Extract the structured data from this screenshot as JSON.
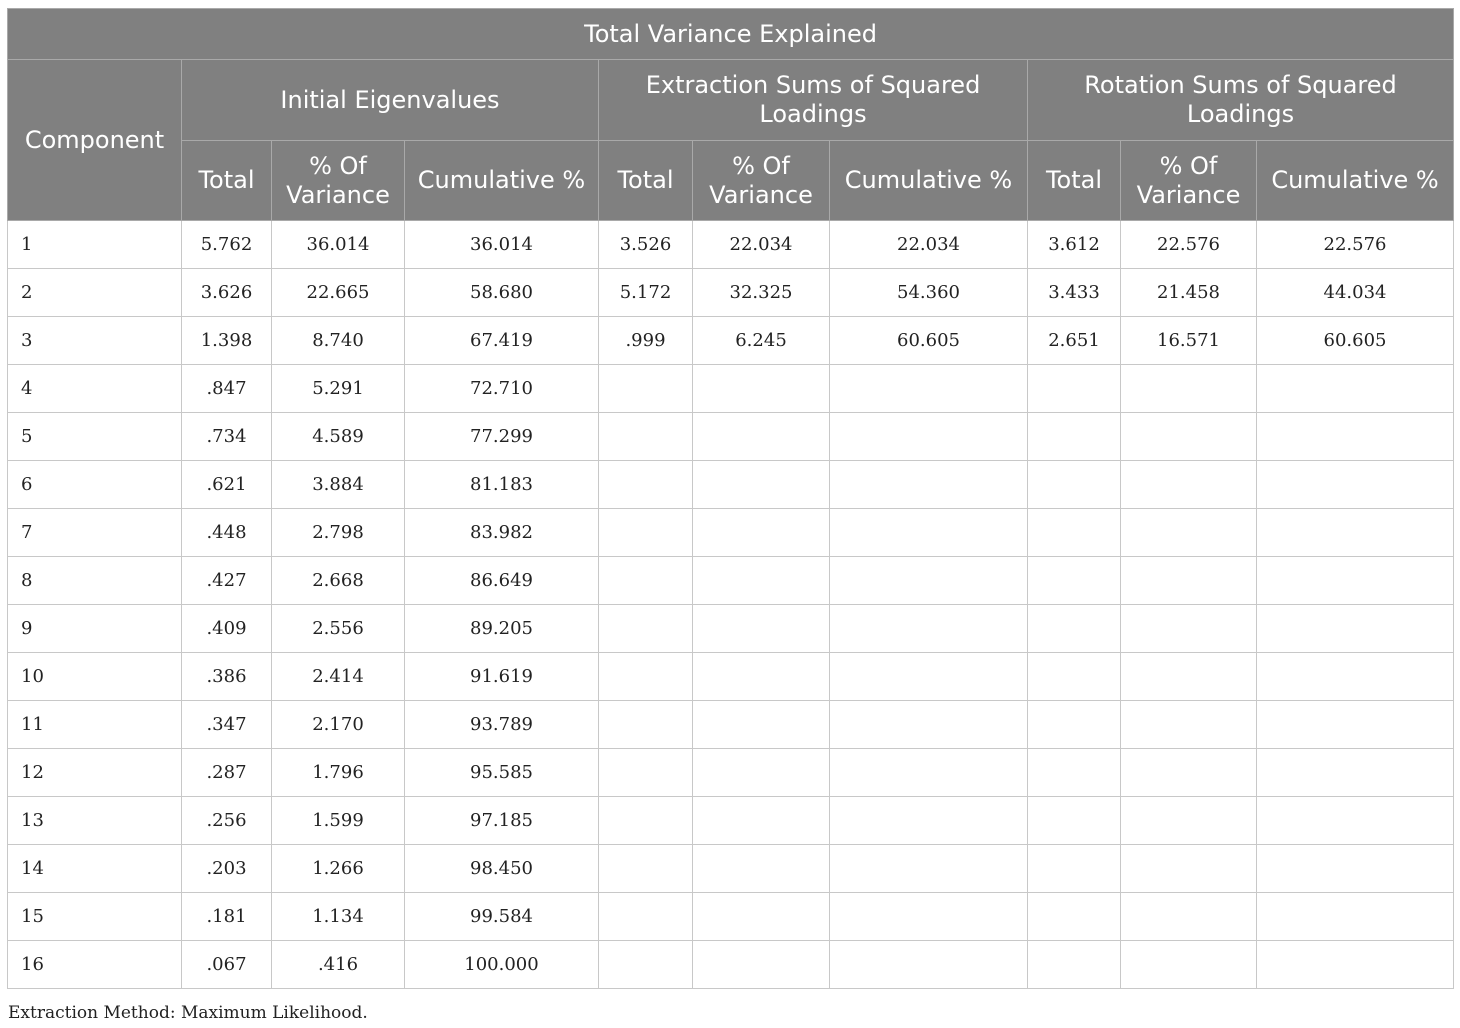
{
  "table": {
    "title": "Total Variance Explained",
    "component_header": "Component",
    "groups": [
      {
        "label": "Initial Eigenvalues"
      },
      {
        "label": "Extraction Sums of Squared Loadings"
      },
      {
        "label": "Rotation Sums of Squared Loadings"
      }
    ],
    "subheaders": {
      "total": "Total",
      "pct_variance": "% Of Variance",
      "cumulative": "Cumulative %"
    },
    "rows": [
      [
        "1",
        "5.762",
        "36.014",
        "36.014",
        "3.526",
        "22.034",
        "22.034",
        "3.612",
        "22.576",
        "22.576"
      ],
      [
        "2",
        "3.626",
        "22.665",
        "58.680",
        "5.172",
        "32.325",
        "54.360",
        "3.433",
        "21.458",
        "44.034"
      ],
      [
        "3",
        "1.398",
        "8.740",
        "67.419",
        ".999",
        "6.245",
        "60.605",
        "2.651",
        "16.571",
        "60.605"
      ],
      [
        "4",
        ".847",
        "5.291",
        "72.710",
        "",
        "",
        "",
        "",
        "",
        ""
      ],
      [
        "5",
        ".734",
        "4.589",
        "77.299",
        "",
        "",
        "",
        "",
        "",
        ""
      ],
      [
        "6",
        ".621",
        "3.884",
        "81.183",
        "",
        "",
        "",
        "",
        "",
        ""
      ],
      [
        "7",
        ".448",
        "2.798",
        "83.982",
        "",
        "",
        "",
        "",
        "",
        ""
      ],
      [
        "8",
        ".427",
        "2.668",
        "86.649",
        "",
        "",
        "",
        "",
        "",
        ""
      ],
      [
        "9",
        ".409",
        "2.556",
        "89.205",
        "",
        "",
        "",
        "",
        "",
        ""
      ],
      [
        "10",
        ".386",
        "2.414",
        "91.619",
        "",
        "",
        "",
        "",
        "",
        ""
      ],
      [
        "11",
        ".347",
        "2.170",
        "93.789",
        "",
        "",
        "",
        "",
        "",
        ""
      ],
      [
        "12",
        ".287",
        "1.796",
        "95.585",
        "",
        "",
        "",
        "",
        "",
        ""
      ],
      [
        "13",
        ".256",
        "1.599",
        "97.185",
        "",
        "",
        "",
        "",
        "",
        ""
      ],
      [
        "14",
        ".203",
        "1.266",
        "98.450",
        "",
        "",
        "",
        "",
        "",
        ""
      ],
      [
        "15",
        ".181",
        "1.134",
        "99.584",
        "",
        "",
        "",
        "",
        "",
        ""
      ],
      [
        "16",
        ".067",
        ".416",
        "100.000",
        "",
        "",
        "",
        "",
        "",
        ""
      ]
    ]
  },
  "footnote": "Extraction Method: Maximum Likelihood.",
  "colors": {
    "header_bg": "#808080",
    "header_text": "#ffffff",
    "grid": "#c8c8c8"
  }
}
